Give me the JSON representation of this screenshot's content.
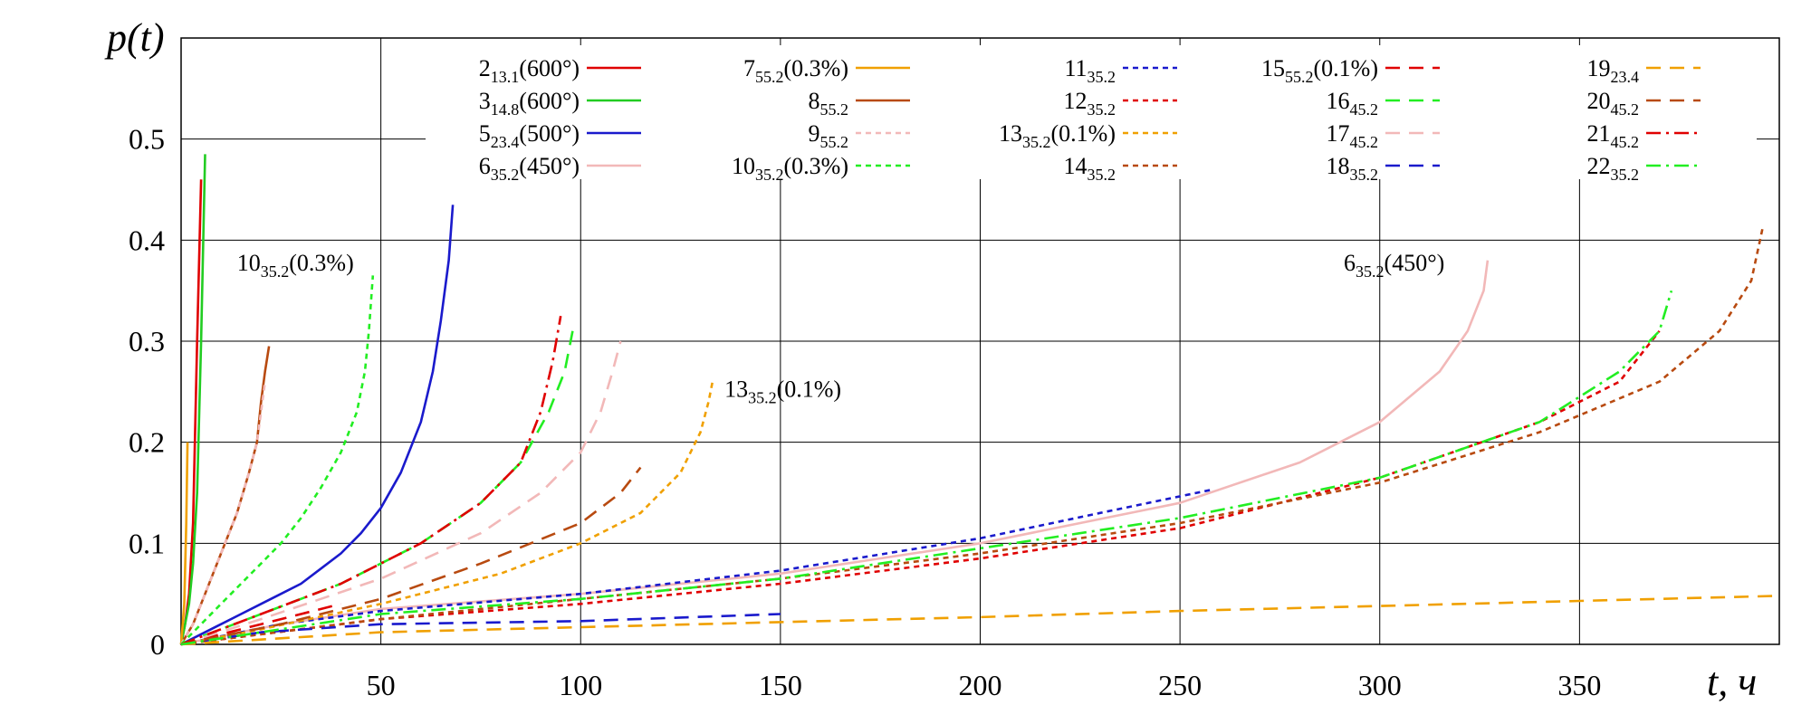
{
  "chart_data": {
    "type": "line",
    "ylabel": "p(t)",
    "xlabel": "t, ч",
    "xlim": [
      0,
      400
    ],
    "ylim": [
      0,
      0.6
    ],
    "xticks": [
      50,
      100,
      150,
      200,
      250,
      300,
      350
    ],
    "yticks": [
      0,
      0.1,
      0.2,
      0.3,
      0.4,
      0.5
    ],
    "grid": true,
    "legend_position": "top",
    "series": [
      {
        "name": "2",
        "sub": "13.1",
        "suffix": "(600°)",
        "color": "#e00000",
        "dash": "solid",
        "points": [
          [
            0,
            0
          ],
          [
            1,
            0.02
          ],
          [
            2,
            0.05
          ],
          [
            3,
            0.12
          ],
          [
            4,
            0.3
          ],
          [
            5,
            0.46
          ]
        ]
      },
      {
        "name": "3",
        "sub": "14.8",
        "suffix": "(600°)",
        "color": "#22cc22",
        "dash": "solid",
        "points": [
          [
            0,
            0
          ],
          [
            1,
            0.02
          ],
          [
            2,
            0.04
          ],
          [
            3,
            0.08
          ],
          [
            4,
            0.15
          ],
          [
            5,
            0.3
          ],
          [
            6,
            0.485
          ]
        ]
      },
      {
        "name": "5",
        "sub": "23.4",
        "suffix": "(500°)",
        "color": "#1a1acc",
        "dash": "solid",
        "points": [
          [
            0,
            0
          ],
          [
            5,
            0.01
          ],
          [
            10,
            0.02
          ],
          [
            15,
            0.03
          ],
          [
            20,
            0.04
          ],
          [
            25,
            0.05
          ],
          [
            30,
            0.06
          ],
          [
            35,
            0.075
          ],
          [
            40,
            0.09
          ],
          [
            45,
            0.11
          ],
          [
            50,
            0.135
          ],
          [
            55,
            0.17
          ],
          [
            60,
            0.22
          ],
          [
            63,
            0.27
          ],
          [
            65,
            0.32
          ],
          [
            67,
            0.38
          ],
          [
            68,
            0.435
          ]
        ]
      },
      {
        "name": "6",
        "sub": "35.2",
        "suffix": "(450°)",
        "color": "#f2b8b8",
        "dash": "solid",
        "points": [
          [
            0,
            0
          ],
          [
            25,
            0.02
          ],
          [
            50,
            0.035
          ],
          [
            100,
            0.05
          ],
          [
            150,
            0.07
          ],
          [
            200,
            0.1
          ],
          [
            250,
            0.14
          ],
          [
            280,
            0.18
          ],
          [
            300,
            0.22
          ],
          [
            315,
            0.27
          ],
          [
            322,
            0.31
          ],
          [
            326,
            0.35
          ],
          [
            327,
            0.38
          ]
        ]
      },
      {
        "name": "7",
        "sub": "55.2",
        "suffix": "(0.3%)",
        "color": "#f0a000",
        "dash": "solid",
        "points": [
          [
            0,
            0
          ],
          [
            0.8,
            0.04
          ],
          [
            1.3,
            0.12
          ],
          [
            1.6,
            0.2
          ]
        ]
      },
      {
        "name": "8",
        "sub": "55.2",
        "suffix": "",
        "color": "#b84a10",
        "dash": "solid",
        "points": [
          [
            0,
            0
          ],
          [
            3,
            0.02
          ],
          [
            6,
            0.05
          ],
          [
            10,
            0.09
          ],
          [
            14,
            0.13
          ],
          [
            17,
            0.17
          ],
          [
            19,
            0.2
          ],
          [
            20,
            0.24
          ],
          [
            21,
            0.27
          ],
          [
            22,
            0.295
          ]
        ]
      },
      {
        "name": "9",
        "sub": "55.2",
        "suffix": "",
        "color": "#f2b8b8",
        "dash": "short",
        "points": [
          [
            0,
            0
          ],
          [
            3,
            0.02
          ],
          [
            6,
            0.05
          ],
          [
            10,
            0.09
          ],
          [
            14,
            0.13
          ],
          [
            17,
            0.17
          ],
          [
            19,
            0.2
          ],
          [
            20,
            0.23
          ],
          [
            21,
            0.26
          ]
        ]
      },
      {
        "name": "10",
        "sub": "35.2",
        "suffix": "(0.3%)",
        "color": "#22ee22",
        "dash": "short",
        "points": [
          [
            0,
            0
          ],
          [
            5,
            0.02
          ],
          [
            10,
            0.04
          ],
          [
            15,
            0.06
          ],
          [
            20,
            0.08
          ],
          [
            25,
            0.1
          ],
          [
            30,
            0.125
          ],
          [
            35,
            0.155
          ],
          [
            40,
            0.19
          ],
          [
            44,
            0.23
          ],
          [
            46,
            0.27
          ],
          [
            47,
            0.31
          ],
          [
            48,
            0.365
          ]
        ]
      },
      {
        "name": "11",
        "sub": "35.2",
        "suffix": "",
        "color": "#1a1acc",
        "dash": "short",
        "points": [
          [
            0,
            0
          ],
          [
            25,
            0.02
          ],
          [
            50,
            0.033
          ],
          [
            100,
            0.05
          ],
          [
            150,
            0.073
          ],
          [
            200,
            0.105
          ],
          [
            230,
            0.13
          ],
          [
            258,
            0.153
          ]
        ]
      },
      {
        "name": "12",
        "sub": "35.2",
        "suffix": "",
        "color": "#e00000",
        "dash": "short",
        "points": [
          [
            0,
            0
          ],
          [
            50,
            0.025
          ],
          [
            100,
            0.04
          ],
          [
            150,
            0.06
          ],
          [
            200,
            0.085
          ],
          [
            250,
            0.115
          ],
          [
            300,
            0.165
          ],
          [
            340,
            0.22
          ],
          [
            360,
            0.26
          ],
          [
            370,
            0.31
          ]
        ]
      },
      {
        "name": "13",
        "sub": "35.2",
        "suffix": "(0.1%)",
        "color": "#f0a000",
        "dash": "short",
        "points": [
          [
            0,
            0
          ],
          [
            20,
            0.015
          ],
          [
            50,
            0.04
          ],
          [
            80,
            0.07
          ],
          [
            100,
            0.1
          ],
          [
            115,
            0.13
          ],
          [
            125,
            0.17
          ],
          [
            130,
            0.21
          ],
          [
            132,
            0.24
          ],
          [
            133,
            0.26
          ]
        ]
      },
      {
        "name": "14",
        "sub": "35.2",
        "suffix": "",
        "color": "#b84a10",
        "dash": "short",
        "points": [
          [
            0,
            0
          ],
          [
            50,
            0.025
          ],
          [
            100,
            0.045
          ],
          [
            150,
            0.065
          ],
          [
            200,
            0.09
          ],
          [
            250,
            0.12
          ],
          [
            300,
            0.16
          ],
          [
            340,
            0.21
          ],
          [
            370,
            0.26
          ],
          [
            385,
            0.31
          ],
          [
            393,
            0.36
          ],
          [
            396,
            0.415
          ]
        ]
      },
      {
        "name": "15",
        "sub": "55.2",
        "suffix": "(0.1%)",
        "color": "#e00000",
        "dash": "long",
        "points": [
          [
            0,
            0
          ],
          [
            20,
            0.02
          ],
          [
            40,
            0.04
          ]
        ]
      },
      {
        "name": "16",
        "sub": "45.2",
        "suffix": "",
        "color": "#22ee22",
        "dash": "long",
        "points": [
          [
            0,
            0
          ],
          [
            20,
            0.03
          ],
          [
            40,
            0.06
          ],
          [
            60,
            0.1
          ],
          [
            75,
            0.14
          ],
          [
            85,
            0.18
          ],
          [
            92,
            0.23
          ],
          [
            96,
            0.27
          ],
          [
            98,
            0.31
          ]
        ]
      },
      {
        "name": "17",
        "sub": "45.2",
        "suffix": "",
        "color": "#f2b8b8",
        "dash": "long",
        "points": [
          [
            0,
            0
          ],
          [
            20,
            0.025
          ],
          [
            50,
            0.065
          ],
          [
            75,
            0.11
          ],
          [
            90,
            0.15
          ],
          [
            100,
            0.19
          ],
          [
            105,
            0.23
          ],
          [
            108,
            0.27
          ],
          [
            110,
            0.3
          ]
        ]
      },
      {
        "name": "18",
        "sub": "35.2",
        "suffix": "",
        "color": "#1a1acc",
        "dash": "long",
        "points": [
          [
            0,
            0
          ],
          [
            20,
            0.012
          ],
          [
            50,
            0.02
          ],
          [
            100,
            0.023
          ],
          [
            150,
            0.03
          ]
        ]
      },
      {
        "name": "19",
        "sub": "23.4",
        "suffix": "",
        "color": "#f0a000",
        "dash": "long",
        "points": [
          [
            0,
            0
          ],
          [
            50,
            0.012
          ],
          [
            100,
            0.017
          ],
          [
            150,
            0.022
          ],
          [
            200,
            0.027
          ],
          [
            250,
            0.033
          ],
          [
            300,
            0.038
          ],
          [
            350,
            0.043
          ],
          [
            400,
            0.048
          ]
        ]
      },
      {
        "name": "20",
        "sub": "45.2",
        "suffix": "",
        "color": "#b84a10",
        "dash": "long",
        "points": [
          [
            0,
            0
          ],
          [
            25,
            0.02
          ],
          [
            50,
            0.045
          ],
          [
            75,
            0.08
          ],
          [
            100,
            0.12
          ],
          [
            110,
            0.15
          ],
          [
            115,
            0.175
          ]
        ]
      },
      {
        "name": "21",
        "sub": "45.2",
        "suffix": "",
        "color": "#e00000",
        "dash": "dashdot",
        "points": [
          [
            0,
            0
          ],
          [
            20,
            0.03
          ],
          [
            40,
            0.06
          ],
          [
            60,
            0.1
          ],
          [
            75,
            0.14
          ],
          [
            85,
            0.18
          ],
          [
            90,
            0.23
          ],
          [
            93,
            0.28
          ],
          [
            95,
            0.325
          ]
        ]
      },
      {
        "name": "22",
        "sub": "35.2",
        "suffix": "",
        "color": "#22ee22",
        "dash": "dashdot",
        "points": [
          [
            0,
            0
          ],
          [
            50,
            0.03
          ],
          [
            100,
            0.045
          ],
          [
            150,
            0.065
          ],
          [
            200,
            0.095
          ],
          [
            250,
            0.125
          ],
          [
            300,
            0.165
          ],
          [
            340,
            0.22
          ],
          [
            360,
            0.27
          ],
          [
            370,
            0.31
          ],
          [
            373,
            0.35
          ]
        ]
      }
    ],
    "annotations": [
      {
        "name": "10",
        "sub": "35.2",
        "suffix": "(0.3%)",
        "at": [
          14,
          0.37
        ]
      },
      {
        "name": "13",
        "sub": "35.2",
        "suffix": "(0.1%)",
        "at": [
          136,
          0.245
        ]
      },
      {
        "name": "6",
        "sub": "35.2",
        "suffix": "(450°)",
        "at": [
          291,
          0.37
        ]
      }
    ]
  }
}
